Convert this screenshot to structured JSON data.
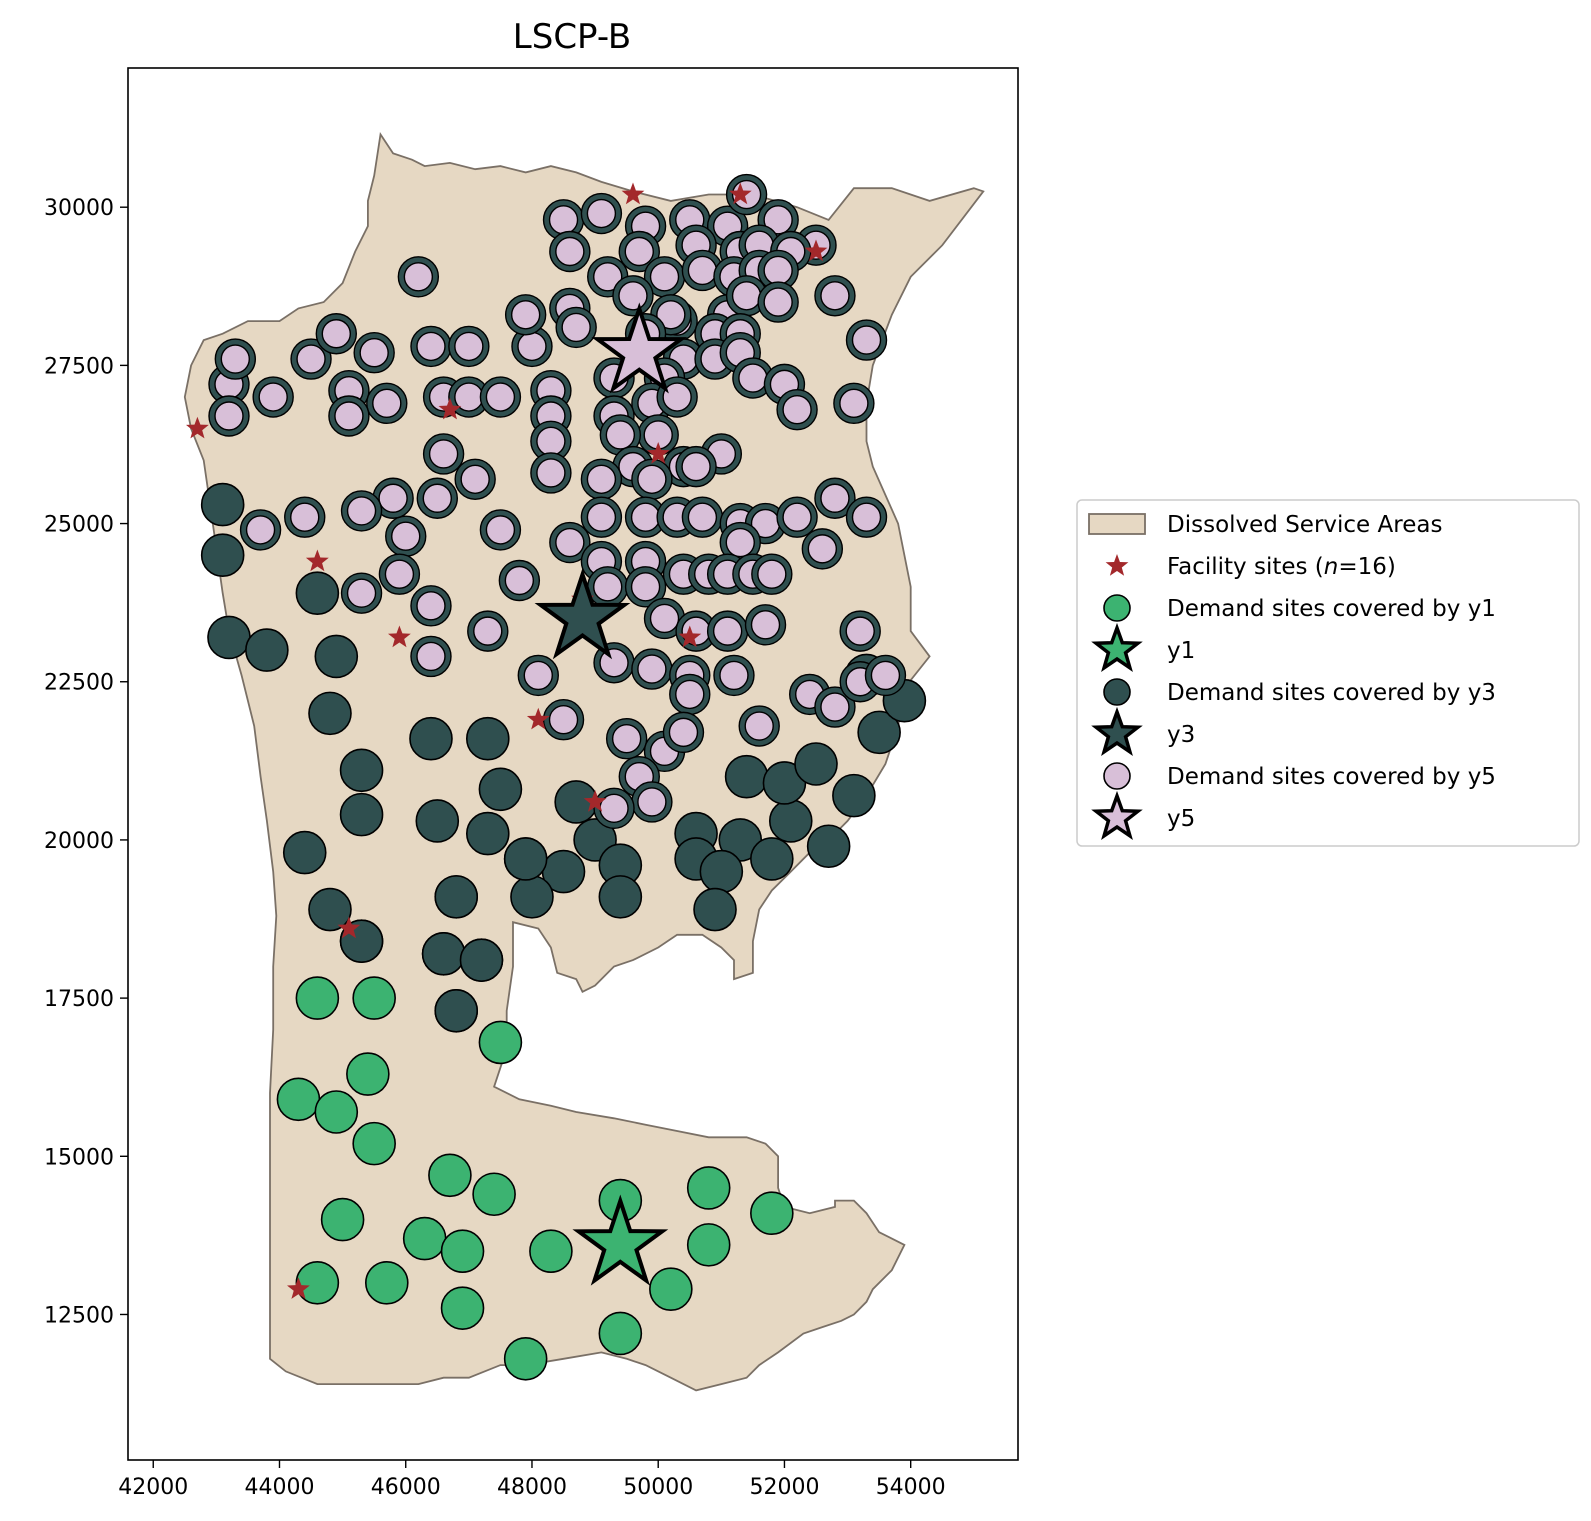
{
  "chart_data": {
    "type": "scatter",
    "title": "LSCP-B",
    "xlabel": "",
    "ylabel": "",
    "xlim": [
      41600,
      55700
    ],
    "ylim": [
      10200,
      32200
    ],
    "x_ticks": [
      42000,
      44000,
      46000,
      48000,
      50000,
      52000,
      54000
    ],
    "y_ticks": [
      12500,
      15000,
      17500,
      20000,
      22500,
      25000,
      27500,
      30000
    ],
    "x_tick_labels": [
      "42000",
      "44000",
      "46000",
      "48000",
      "50000",
      "52000",
      "54000"
    ],
    "y_tick_labels": [
      "12500",
      "15000",
      "17500",
      "20000",
      "22500",
      "25000",
      "27500",
      "30000"
    ],
    "grid": false,
    "legend_position": "outside-right",
    "colors": {
      "area_fill": "#e6d8c3",
      "area_edge": "#7a7066",
      "facility": "#a3282b",
      "y1": "#3cb371",
      "y3": "#2f4f4f",
      "y5": "#d8bfd8"
    },
    "legend": [
      {
        "label": "Dissolved Service Areas",
        "marker": "patch"
      },
      {
        "label_parts": [
          {
            "t": "Facility sites ("
          },
          {
            "t": "n",
            "italic": true
          },
          {
            "t": "=16)"
          }
        ],
        "marker": "small-star"
      },
      {
        "label": "Demand sites covered by y1",
        "marker": "circle",
        "color": "y1"
      },
      {
        "label": "y1",
        "marker": "big-star",
        "color": "y1"
      },
      {
        "label": "Demand sites covered by y3",
        "marker": "circle",
        "color": "y3"
      },
      {
        "label": "y3",
        "marker": "big-star",
        "color": "y3"
      },
      {
        "label": "Demand sites covered by y5",
        "marker": "circle",
        "color": "y5"
      },
      {
        "label": "y5",
        "marker": "big-star",
        "color": "y5"
      }
    ],
    "service_area_polygon": [
      [
        45600,
        31150
      ],
      [
        45800,
        30850
      ],
      [
        46100,
        30750
      ],
      [
        46300,
        30650
      ],
      [
        46700,
        30700
      ],
      [
        47100,
        30600
      ],
      [
        47500,
        30650
      ],
      [
        47900,
        30550
      ],
      [
        48300,
        30650
      ],
      [
        48700,
        30550
      ],
      [
        49100,
        30400
      ],
      [
        49600,
        30250
      ],
      [
        50200,
        30100
      ],
      [
        50800,
        30200
      ],
      [
        51500,
        30200
      ],
      [
        52200,
        30000
      ],
      [
        52700,
        29800
      ],
      [
        53100,
        30300
      ],
      [
        53700,
        30300
      ],
      [
        54300,
        30100
      ],
      [
        55000,
        30300
      ],
      [
        55150,
        30250
      ],
      [
        54500,
        29400
      ],
      [
        54000,
        28900
      ],
      [
        53700,
        28300
      ],
      [
        53400,
        27500
      ],
      [
        53300,
        26900
      ],
      [
        53300,
        26300
      ],
      [
        53400,
        25900
      ],
      [
        53800,
        25000
      ],
      [
        54000,
        24000
      ],
      [
        54000,
        23300
      ],
      [
        54300,
        22900
      ],
      [
        53900,
        22400
      ],
      [
        53800,
        21800
      ],
      [
        53600,
        21200
      ],
      [
        53300,
        20700
      ],
      [
        53000,
        20300
      ],
      [
        52800,
        20100
      ],
      [
        52400,
        19800
      ],
      [
        52100,
        19500
      ],
      [
        51800,
        19200
      ],
      [
        51600,
        18900
      ],
      [
        51500,
        18400
      ],
      [
        51500,
        17900
      ],
      [
        51200,
        17800
      ],
      [
        51200,
        18100
      ],
      [
        51000,
        18300
      ],
      [
        50700,
        18500
      ],
      [
        50300,
        18500
      ],
      [
        50000,
        18300
      ],
      [
        49600,
        18100
      ],
      [
        49300,
        18000
      ],
      [
        49000,
        17700
      ],
      [
        48800,
        17600
      ],
      [
        48700,
        17800
      ],
      [
        48400,
        17900
      ],
      [
        48300,
        18300
      ],
      [
        48100,
        18600
      ],
      [
        47700,
        18700
      ],
      [
        47700,
        18000
      ],
      [
        47600,
        17300
      ],
      [
        47600,
        16700
      ],
      [
        47400,
        16100
      ],
      [
        47800,
        15900
      ],
      [
        48300,
        15800
      ],
      [
        48700,
        15700
      ],
      [
        49300,
        15600
      ],
      [
        49800,
        15500
      ],
      [
        50300,
        15400
      ],
      [
        50800,
        15300
      ],
      [
        51400,
        15300
      ],
      [
        51700,
        15200
      ],
      [
        51900,
        15000
      ],
      [
        51900,
        14500
      ],
      [
        52000,
        14200
      ],
      [
        52400,
        14100
      ],
      [
        52800,
        14200
      ],
      [
        52800,
        14300
      ],
      [
        53100,
        14300
      ],
      [
        53300,
        14100
      ],
      [
        53500,
        13800
      ],
      [
        53900,
        13600
      ],
      [
        53700,
        13200
      ],
      [
        53400,
        12900
      ],
      [
        53300,
        12700
      ],
      [
        53100,
        12500
      ],
      [
        52900,
        12400
      ],
      [
        52600,
        12300
      ],
      [
        52300,
        12200
      ],
      [
        51900,
        11900
      ],
      [
        51600,
        11700
      ],
      [
        51400,
        11500
      ],
      [
        51000,
        11400
      ],
      [
        50600,
        11300
      ],
      [
        50200,
        11500
      ],
      [
        49800,
        11700
      ],
      [
        49500,
        11800
      ],
      [
        49100,
        11900
      ],
      [
        48500,
        11800
      ],
      [
        47900,
        11700
      ],
      [
        47500,
        11700
      ],
      [
        47000,
        11500
      ],
      [
        46600,
        11500
      ],
      [
        46200,
        11400
      ],
      [
        45700,
        11400
      ],
      [
        45100,
        11400
      ],
      [
        44600,
        11400
      ],
      [
        44100,
        11600
      ],
      [
        43850,
        11800
      ],
      [
        43850,
        12400
      ],
      [
        43850,
        13500
      ],
      [
        43850,
        15000
      ],
      [
        43850,
        16000
      ],
      [
        43900,
        17000
      ],
      [
        43900,
        18000
      ],
      [
        43950,
        18800
      ],
      [
        43900,
        19500
      ],
      [
        43800,
        20300
      ],
      [
        43700,
        21000
      ],
      [
        43600,
        21800
      ],
      [
        43400,
        22600
      ],
      [
        43200,
        23300
      ],
      [
        43100,
        23900
      ],
      [
        43000,
        24600
      ],
      [
        42900,
        25300
      ],
      [
        42800,
        26000
      ],
      [
        42600,
        26500
      ],
      [
        42500,
        27000
      ],
      [
        42600,
        27500
      ],
      [
        42800,
        27900
      ],
      [
        43100,
        28000
      ],
      [
        43500,
        28200
      ],
      [
        44000,
        28200
      ],
      [
        44300,
        28400
      ],
      [
        44700,
        28500
      ],
      [
        45000,
        28800
      ],
      [
        45200,
        29300
      ],
      [
        45400,
        29700
      ],
      [
        45400,
        30100
      ],
      [
        45500,
        30500
      ]
    ],
    "facilities": [
      [
        49600,
        30200
      ],
      [
        51300,
        30200
      ],
      [
        52500,
        29300
      ],
      [
        46700,
        26800
      ],
      [
        42700,
        26500
      ],
      [
        50000,
        26100
      ],
      [
        44600,
        24400
      ],
      [
        45900,
        23200
      ],
      [
        50500,
        23200
      ],
      [
        48100,
        21900
      ],
      [
        49000,
        20600
      ],
      [
        45100,
        18600
      ],
      [
        44300,
        12900
      ],
      [
        49700,
        27800
      ],
      [
        48800,
        23800
      ],
      [
        49400,
        13600
      ]
    ],
    "stars": [
      {
        "site": "y1",
        "x": 49400,
        "y": 13600
      },
      {
        "site": "y3",
        "x": 48800,
        "y": 23500
      },
      {
        "site": "y5",
        "x": 49700,
        "y": 27700
      }
    ],
    "y1_sites": [
      [
        47900,
        19700
      ],
      [
        45300,
        18400
      ],
      [
        46800,
        19100
      ],
      [
        46600,
        18200
      ],
      [
        47200,
        18100
      ],
      [
        46800,
        17300
      ],
      [
        44600,
        17500
      ],
      [
        45500,
        17500
      ],
      [
        47500,
        16800
      ],
      [
        45400,
        16300
      ],
      [
        44300,
        15900
      ],
      [
        44900,
        15700
      ],
      [
        45500,
        15200
      ],
      [
        46700,
        14700
      ],
      [
        47400,
        14400
      ],
      [
        49400,
        14300
      ],
      [
        50800,
        14500
      ],
      [
        51800,
        14100
      ],
      [
        45000,
        14000
      ],
      [
        46300,
        13700
      ],
      [
        46900,
        13500
      ],
      [
        48300,
        13500
      ],
      [
        50800,
        13600
      ],
      [
        44600,
        13000
      ],
      [
        45700,
        13000
      ],
      [
        50200,
        12900
      ],
      [
        46900,
        12600
      ],
      [
        49400,
        12200
      ],
      [
        47900,
        11800
      ]
    ],
    "y3_sites": [
      [
        43100,
        25300
      ],
      [
        43100,
        24500
      ],
      [
        44600,
        23900
      ],
      [
        43200,
        23200
      ],
      [
        43800,
        23000
      ],
      [
        44900,
        22900
      ],
      [
        44800,
        22000
      ],
      [
        46400,
        21600
      ],
      [
        47300,
        21600
      ],
      [
        45300,
        21100
      ],
      [
        47500,
        20800
      ],
      [
        48700,
        20600
      ],
      [
        45300,
        20400
      ],
      [
        46500,
        20300
      ],
      [
        47300,
        20100
      ],
      [
        49000,
        20000
      ],
      [
        44400,
        19800
      ],
      [
        48500,
        19500
      ],
      [
        49400,
        19600
      ],
      [
        48000,
        19100
      ],
      [
        49400,
        19100
      ],
      [
        44800,
        18900
      ],
      [
        45300,
        18400
      ],
      [
        46800,
        19100
      ],
      [
        46600,
        18200
      ],
      [
        47200,
        18100
      ],
      [
        46800,
        17300
      ],
      [
        47900,
        19700
      ],
      [
        50600,
        20100
      ],
      [
        51300,
        20000
      ],
      [
        50600,
        19700
      ],
      [
        51000,
        19500
      ],
      [
        51800,
        19700
      ],
      [
        50900,
        18900
      ],
      [
        52100,
        20300
      ],
      [
        52700,
        19900
      ],
      [
        51400,
        21000
      ],
      [
        52000,
        20900
      ],
      [
        52500,
        21200
      ],
      [
        53100,
        20700
      ],
      [
        53500,
        21700
      ],
      [
        53900,
        22200
      ],
      [
        53300,
        22600
      ]
    ],
    "y5_sites": [
      [
        48500,
        29800
      ],
      [
        49100,
        29900
      ],
      [
        49800,
        29700
      ],
      [
        50500,
        29800
      ],
      [
        51100,
        29700
      ],
      [
        51400,
        30200
      ],
      [
        51900,
        29800
      ],
      [
        52500,
        29400
      ],
      [
        48600,
        29300
      ],
      [
        49700,
        29300
      ],
      [
        50600,
        29400
      ],
      [
        51300,
        29300
      ],
      [
        51600,
        29400
      ],
      [
        52100,
        29300
      ],
      [
        50100,
        28900
      ],
      [
        50700,
        29000
      ],
      [
        51200,
        28900
      ],
      [
        51600,
        29000
      ],
      [
        51900,
        29000
      ],
      [
        49200,
        28900
      ],
      [
        48600,
        28400
      ],
      [
        49600,
        28600
      ],
      [
        50300,
        28200
      ],
      [
        51100,
        28300
      ],
      [
        51400,
        28600
      ],
      [
        51900,
        28500
      ],
      [
        52800,
        28600
      ],
      [
        48700,
        28100
      ],
      [
        50200,
        28300
      ],
      [
        50900,
        28000
      ],
      [
        51300,
        28000
      ],
      [
        48000,
        27800
      ],
      [
        47900,
        28300
      ],
      [
        49800,
        28000
      ],
      [
        50400,
        27600
      ],
      [
        50900,
        27600
      ],
      [
        51300,
        27700
      ],
      [
        53300,
        27900
      ],
      [
        49300,
        27300
      ],
      [
        50100,
        27300
      ],
      [
        51500,
        27300
      ],
      [
        52000,
        27200
      ],
      [
        48300,
        27100
      ],
      [
        49900,
        26900
      ],
      [
        50300,
        27000
      ],
      [
        52200,
        26800
      ],
      [
        53100,
        26900
      ],
      [
        49300,
        26700
      ],
      [
        48300,
        26700
      ],
      [
        50000,
        26400
      ],
      [
        49400,
        26400
      ],
      [
        48300,
        26300
      ],
      [
        51000,
        26100
      ],
      [
        50400,
        25900
      ],
      [
        50600,
        25900
      ],
      [
        49600,
        25900
      ],
      [
        48300,
        25800
      ],
      [
        49100,
        25700
      ],
      [
        49900,
        25700
      ],
      [
        52800,
        25400
      ],
      [
        53300,
        25100
      ],
      [
        49100,
        25100
      ],
      [
        49800,
        25100
      ],
      [
        50300,
        25100
      ],
      [
        50700,
        25100
      ],
      [
        51300,
        25000
      ],
      [
        51700,
        25000
      ],
      [
        52200,
        25100
      ],
      [
        48600,
        24700
      ],
      [
        51300,
        24700
      ],
      [
        52600,
        24600
      ],
      [
        49100,
        24400
      ],
      [
        49800,
        24400
      ],
      [
        50400,
        24200
      ],
      [
        50800,
        24200
      ],
      [
        51100,
        24200
      ],
      [
        51500,
        24200
      ],
      [
        51800,
        24200
      ],
      [
        49200,
        24000
      ],
      [
        49800,
        24000
      ],
      [
        50100,
        23500
      ],
      [
        50600,
        23300
      ],
      [
        51100,
        23300
      ],
      [
        51700,
        23400
      ],
      [
        53200,
        23300
      ],
      [
        49300,
        22800
      ],
      [
        49900,
        22700
      ],
      [
        50500,
        22600
      ],
      [
        51200,
        22600
      ],
      [
        52400,
        22300
      ],
      [
        52800,
        22100
      ],
      [
        53200,
        22500
      ],
      [
        53600,
        22600
      ],
      [
        50500,
        22300
      ],
      [
        48500,
        21900
      ],
      [
        49500,
        21600
      ],
      [
        50100,
        21400
      ],
      [
        50400,
        21700
      ],
      [
        51600,
        21800
      ],
      [
        49700,
        21000
      ],
      [
        49900,
        20600
      ],
      [
        49300,
        20500
      ],
      [
        48100,
        22600
      ],
      [
        47800,
        24100
      ],
      [
        47300,
        23300
      ],
      [
        47500,
        24900
      ],
      [
        47100,
        25700
      ],
      [
        46600,
        26100
      ],
      [
        46500,
        25400
      ],
      [
        46000,
        24800
      ],
      [
        45900,
        24200
      ],
      [
        46400,
        23700
      ],
      [
        46400,
        22900
      ],
      [
        45800,
        25400
      ],
      [
        45300,
        25200
      ],
      [
        44400,
        25100
      ],
      [
        45300,
        23900
      ],
      [
        43700,
        24900
      ],
      [
        46600,
        27000
      ],
      [
        47000,
        27000
      ],
      [
        47500,
        27000
      ],
      [
        44500,
        27600
      ],
      [
        44900,
        28000
      ],
      [
        45500,
        27700
      ],
      [
        46400,
        27800
      ],
      [
        47000,
        27800
      ],
      [
        43900,
        27000
      ],
      [
        45100,
        27100
      ],
      [
        45700,
        26900
      ],
      [
        45100,
        26700
      ],
      [
        43200,
        27200
      ],
      [
        43200,
        26700
      ],
      [
        43300,
        27600
      ],
      [
        46200,
        28900
      ]
    ]
  }
}
